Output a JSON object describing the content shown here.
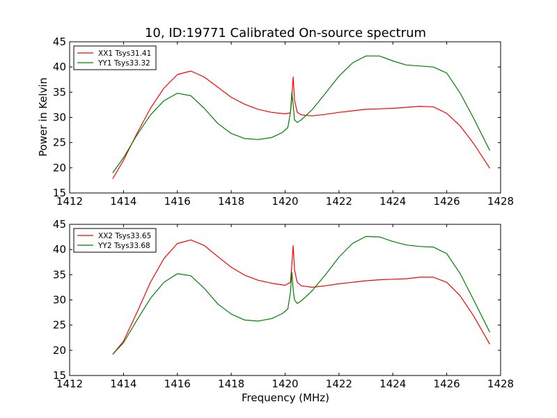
{
  "figure": {
    "title": "10, ID:19771 Calibrated On-source spectrum",
    "ylabel": "Power in Kelvin",
    "xlabel": "Frequency (MHz)"
  },
  "chart_data": [
    {
      "type": "line",
      "title": "10, ID:19771 Calibrated On-source spectrum",
      "xlabel": "",
      "ylabel": "Power in Kelvin",
      "xlim": [
        1412,
        1428
      ],
      "ylim": [
        15,
        45
      ],
      "xticks": [
        1412,
        1414,
        1416,
        1418,
        1420,
        1422,
        1424,
        1426,
        1428
      ],
      "yticks": [
        15,
        20,
        25,
        30,
        35,
        40,
        45
      ],
      "legend_position": "top-left",
      "grid": false,
      "series": [
        {
          "name": "XX1 Tsys31.41",
          "color": "#ff0000",
          "x": [
            1413.6,
            1414.0,
            1414.5,
            1415.0,
            1415.5,
            1416.0,
            1416.5,
            1417.0,
            1417.5,
            1418.0,
            1418.5,
            1419.0,
            1419.5,
            1420.0,
            1420.2,
            1420.25,
            1420.3,
            1420.35,
            1420.45,
            1420.6,
            1421.0,
            1421.5,
            1422.0,
            1422.5,
            1423.0,
            1423.5,
            1424.0,
            1424.5,
            1425.0,
            1425.5,
            1426.0,
            1426.5,
            1427.0,
            1427.6
          ],
          "y": [
            17.8,
            21.5,
            26.8,
            31.8,
            35.8,
            38.5,
            39.2,
            38.0,
            36.0,
            34.0,
            32.6,
            31.6,
            31.0,
            30.7,
            30.9,
            34.0,
            38.0,
            33.5,
            31.0,
            30.5,
            30.3,
            30.6,
            31.0,
            31.3,
            31.6,
            31.7,
            31.8,
            32.0,
            32.2,
            32.1,
            30.8,
            28.3,
            24.8,
            19.9
          ]
        },
        {
          "name": "YY1 Tsys33.32",
          "color": "#008000",
          "x": [
            1413.6,
            1414.0,
            1414.5,
            1415.0,
            1415.5,
            1416.0,
            1416.5,
            1417.0,
            1417.5,
            1418.0,
            1418.5,
            1419.0,
            1419.5,
            1419.9,
            1420.1,
            1420.2,
            1420.25,
            1420.3,
            1420.35,
            1420.45,
            1420.6,
            1421.0,
            1421.5,
            1422.0,
            1422.5,
            1423.0,
            1423.5,
            1424.0,
            1424.5,
            1425.0,
            1425.5,
            1426.0,
            1426.5,
            1427.0,
            1427.6
          ],
          "y": [
            19.0,
            22.0,
            26.5,
            30.5,
            33.3,
            34.8,
            34.3,
            31.8,
            28.8,
            26.8,
            25.8,
            25.6,
            26.0,
            27.0,
            28.0,
            31.0,
            35.0,
            32.5,
            29.5,
            29.0,
            29.5,
            31.5,
            34.8,
            38.2,
            40.8,
            42.2,
            42.2,
            41.2,
            40.4,
            40.2,
            40.0,
            38.8,
            34.8,
            29.8,
            23.4
          ]
        }
      ]
    },
    {
      "type": "line",
      "title": "",
      "xlabel": "Frequency (MHz)",
      "ylabel": "",
      "xlim": [
        1412,
        1428
      ],
      "ylim": [
        15,
        45
      ],
      "xticks": [
        1412,
        1414,
        1416,
        1418,
        1420,
        1422,
        1424,
        1426,
        1428
      ],
      "yticks": [
        15,
        20,
        25,
        30,
        35,
        40,
        45
      ],
      "legend_position": "top-left",
      "grid": false,
      "series": [
        {
          "name": "XX2 Tsys33.65",
          "color": "#ff0000",
          "x": [
            1413.6,
            1414.0,
            1414.5,
            1415.0,
            1415.5,
            1416.0,
            1416.5,
            1417.0,
            1417.5,
            1418.0,
            1418.5,
            1419.0,
            1419.5,
            1420.0,
            1420.2,
            1420.25,
            1420.3,
            1420.35,
            1420.45,
            1420.6,
            1421.0,
            1421.5,
            1422.0,
            1422.5,
            1423.0,
            1423.5,
            1424.0,
            1424.5,
            1425.0,
            1425.5,
            1426.0,
            1426.5,
            1427.0,
            1427.6
          ],
          "y": [
            19.2,
            21.8,
            27.5,
            33.5,
            38.2,
            41.2,
            41.9,
            40.8,
            38.6,
            36.5,
            34.9,
            33.9,
            33.3,
            32.9,
            33.5,
            37.0,
            40.8,
            36.0,
            33.5,
            32.8,
            32.5,
            32.8,
            33.2,
            33.5,
            33.8,
            34.0,
            34.1,
            34.2,
            34.5,
            34.5,
            33.5,
            30.8,
            26.8,
            21.2
          ]
        },
        {
          "name": "YY2 Tsys33.68",
          "color": "#008000",
          "x": [
            1413.6,
            1414.0,
            1414.5,
            1415.0,
            1415.5,
            1416.0,
            1416.5,
            1417.0,
            1417.5,
            1418.0,
            1418.5,
            1419.0,
            1419.5,
            1419.9,
            1420.1,
            1420.2,
            1420.25,
            1420.3,
            1420.35,
            1420.45,
            1420.6,
            1421.0,
            1421.5,
            1422.0,
            1422.5,
            1423.0,
            1423.5,
            1424.0,
            1424.5,
            1425.0,
            1425.5,
            1426.0,
            1426.5,
            1427.0,
            1427.6
          ],
          "y": [
            19.2,
            21.5,
            26.0,
            30.3,
            33.5,
            35.2,
            34.8,
            32.3,
            29.2,
            27.2,
            26.0,
            25.8,
            26.3,
            27.3,
            28.2,
            31.5,
            35.5,
            32.0,
            30.0,
            29.3,
            29.8,
            31.8,
            35.0,
            38.5,
            41.2,
            42.6,
            42.5,
            41.6,
            40.9,
            40.6,
            40.5,
            39.2,
            35.2,
            30.0,
            23.6
          ]
        }
      ]
    }
  ]
}
